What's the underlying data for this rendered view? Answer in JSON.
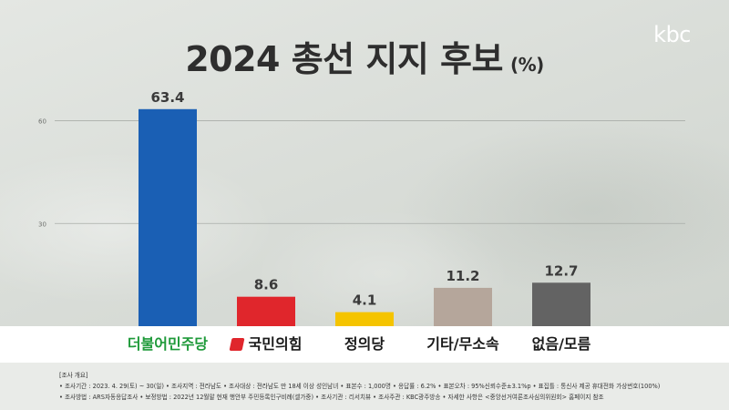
{
  "header": {
    "title": "2024 총선 지지 후보",
    "unit": "(%)",
    "logo": "kbc"
  },
  "chart_data": {
    "type": "bar",
    "title": "2024 총선 지지 후보",
    "categories": [
      "더불어민주당",
      "국민의힘",
      "정의당",
      "기타/무소속",
      "없음/모름"
    ],
    "values": [
      63.4,
      8.6,
      4.1,
      11.2,
      12.7
    ],
    "value_labels": [
      "63.4",
      "8.6",
      "4.1",
      "11.2",
      "12.7"
    ],
    "bar_colors": [
      "#1a5fb4",
      "#e0262c",
      "#f5c400",
      "#b5a69b",
      "#636363"
    ],
    "category_colors": [
      "#1f9a3a",
      "#1a1a1a",
      "#1a1a1a",
      "#1a1a1a",
      "#1a1a1a"
    ],
    "category_marks": [
      null,
      "#e0262c",
      null,
      null,
      null
    ],
    "yticks": [
      30,
      60
    ],
    "ylim": [
      0,
      70
    ],
    "grid": true,
    "legend": "none"
  },
  "footer": {
    "lines": [
      "[조사 개요]",
      "• 조사기간 : 2023. 4. 29(토) ~ 30(일)   • 조사지역 : 전라남도   • 조사대상 : 전라남도 만 18세 이상 성인남녀   • 표본수 : 1,000명   • 응답률 : 6.2%   • 표본오차 : 95%신뢰수준±3.1%p   • 표집틀 : 통신사 제공 휴대전화 가상번호(100%)",
      "• 조사방법 : ARS자동응답조사   • 보정방법 : 2022년 12월말 현재 행안부 주민등록인구비례(셀가중)   • 조사기관 : 리서치뷰   • 조사주관 : KBC광주방송   • 자세한 사항은 <중앙선거여론조사심의위원회> 홈페이지 참조"
    ]
  }
}
